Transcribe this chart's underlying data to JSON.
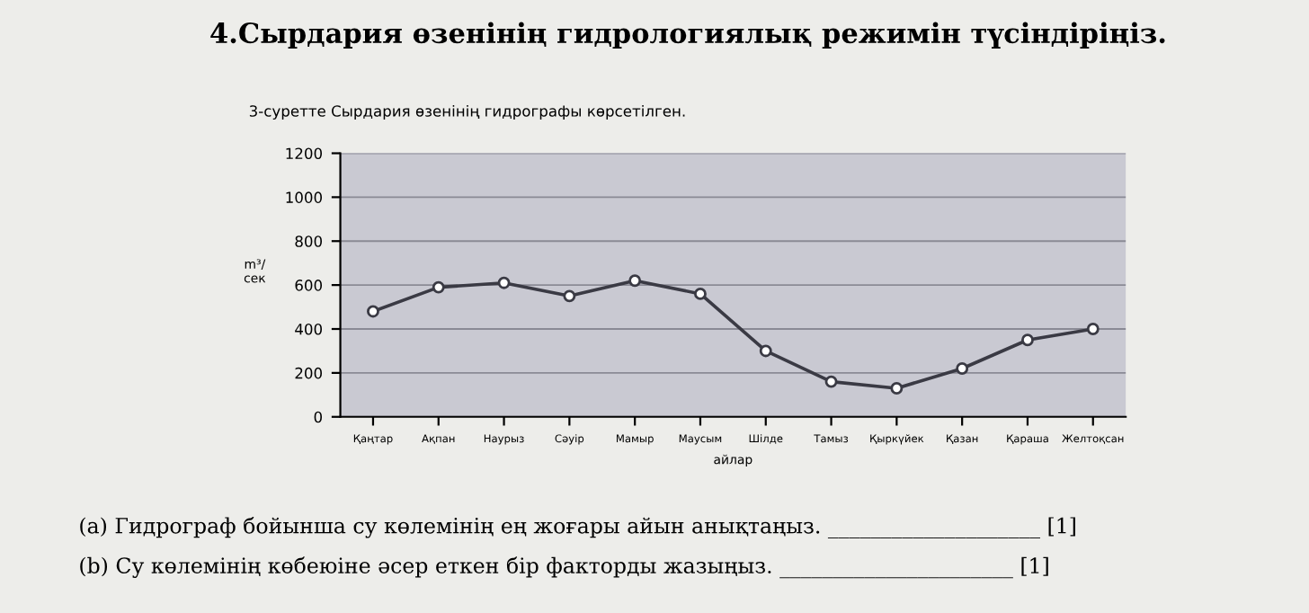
{
  "chart_data": {
    "type": "line",
    "title": "4.Сырдария өзенінің гидрологиялық режимін түсіндіріңіз.",
    "subtitle": "3-суретте Сырдария өзенінің гидрографы көрсетілген.",
    "xlabel": "айлар",
    "ylabel": "m³/\nсек",
    "categories": [
      "Қаңтар",
      "Ақпан",
      "Наурыз",
      "Сәуір",
      "Мамыр",
      "Маусым",
      "Шілде",
      "Тамыз",
      "Қыркүйек",
      "Қазан",
      "Қараша",
      "Желтоқсан"
    ],
    "series": [
      {
        "color": "#3a3a44",
        "values": [
          480,
          590,
          610,
          550,
          620,
          560,
          300,
          160,
          130,
          220,
          350,
          400
        ]
      }
    ],
    "ylim": [
      0,
      1200
    ],
    "yticks": [
      0,
      200,
      400,
      600,
      800,
      1000,
      1200
    ],
    "grid": "y",
    "marker": "circle",
    "line_style": "solid",
    "legend": false,
    "annotations": [
      "(a) Гидрограф бойынша су көлемінің ең жоғары айын анықтаңыз. ____________________ [1]",
      "(b) Су көлемінің көбеюіне әсер еткен бір факторды жазыңыз. ______________________ [1]"
    ]
  }
}
